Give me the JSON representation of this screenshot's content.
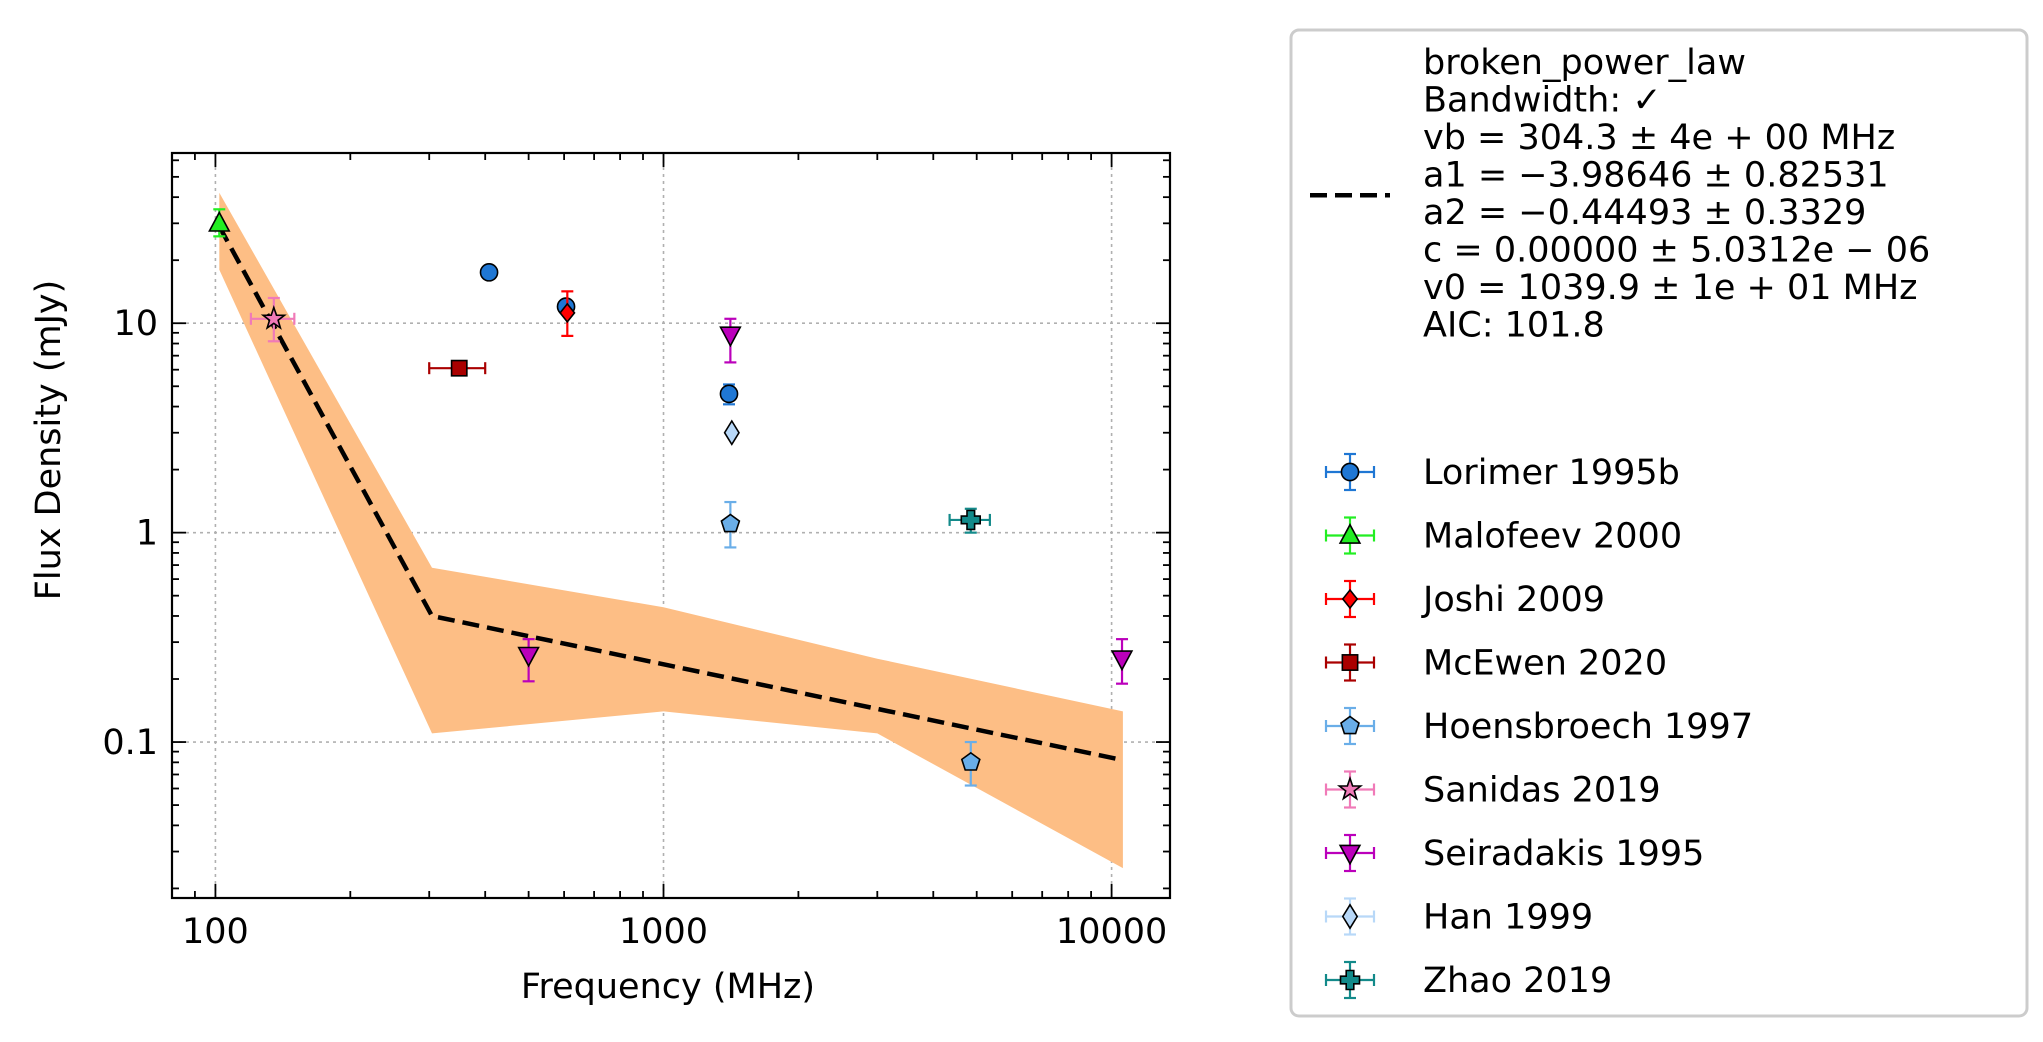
{
  "chart_data": {
    "type": "scatter",
    "xlabel": "Frequency (MHz)",
    "ylabel": "Flux Density (mJy)",
    "xscale": "log",
    "yscale": "log",
    "xlim": [
      80,
      13500
    ],
    "ylim": [
      0.018,
      65
    ],
    "xticks": [
      {
        "value": 100,
        "label": "100"
      },
      {
        "value": 1000,
        "label": "1000"
      },
      {
        "value": 10000,
        "label": "10000"
      }
    ],
    "yticks": [
      {
        "value": 0.1,
        "label": "0.1"
      },
      {
        "value": 1,
        "label": "1"
      },
      {
        "value": 10,
        "label": "10"
      }
    ],
    "grid": true,
    "legend_position": "outside right",
    "fit": {
      "model": "broken_power_law",
      "label_lines": [
        "broken_power_law",
        "Bandwidth: ✓",
        "vb = 304.3 ± 4e + 00 MHz",
        "a1 = −3.98646 ± 0.82531",
        "a2 = −0.44493 ± 0.3329",
        "c = 0.00000 ± 5.0312e − 06",
        "v0 = 1039.9 ± 1e + 01 MHz",
        "AIC: 101.8"
      ],
      "line_color": "#000000",
      "band_color": "#fdbe85",
      "line": [
        [
          102,
          29
        ],
        [
          304.3,
          0.4
        ],
        [
          10600,
          0.082
        ]
      ],
      "band_upper": [
        [
          102,
          42
        ],
        [
          304.3,
          0.68
        ],
        [
          1000,
          0.44
        ],
        [
          3000,
          0.25
        ],
        [
          10600,
          0.14
        ]
      ],
      "band_lower": [
        [
          102,
          18
        ],
        [
          304.3,
          0.11
        ],
        [
          1000,
          0.14
        ],
        [
          3000,
          0.11
        ],
        [
          10600,
          0.025
        ]
      ]
    },
    "series": [
      {
        "name": "Lorimer 1995b",
        "marker": "circle",
        "color": "#1f77d4",
        "points": [
          {
            "x": 408,
            "y": 17.5
          },
          {
            "x": 606,
            "y": 12
          },
          {
            "x": 1400,
            "y": 4.6,
            "yerr": [
              0.5,
              0.5
            ]
          }
        ]
      },
      {
        "name": "Malofeev 2000",
        "marker": "triangle-up",
        "color": "#22ee22",
        "points": [
          {
            "x": 102,
            "y": 30,
            "yerr": [
              4,
              5
            ]
          }
        ]
      },
      {
        "name": "Joshi 2009",
        "marker": "diamond-small",
        "color": "#ff0000",
        "points": [
          {
            "x": 610,
            "y": 11.2,
            "yerr": [
              2.5,
              3
            ]
          }
        ]
      },
      {
        "name": "McEwen 2020",
        "marker": "square",
        "color": "#aa0000",
        "points": [
          {
            "x": 350,
            "y": 6.1,
            "xerr": [
              50,
              50
            ]
          }
        ]
      },
      {
        "name": "Hoensbroech 1997",
        "marker": "pentagon",
        "color": "#6aaee8",
        "points": [
          {
            "x": 1410,
            "y": 1.1,
            "yerr": [
              0.25,
              0.3
            ]
          },
          {
            "x": 4850,
            "y": 0.08,
            "yerr": [
              0.018,
              0.02
            ]
          }
        ]
      },
      {
        "name": "Sanidas 2019",
        "marker": "star",
        "color": "#f07ab8",
        "points": [
          {
            "x": 135,
            "y": 10.5,
            "xerr": [
              15,
              15
            ],
            "yerr": [
              2.3,
              2.7
            ]
          }
        ]
      },
      {
        "name": "Seiradakis 1995",
        "marker": "triangle-down",
        "color": "#bb00bb",
        "points": [
          {
            "x": 1410,
            "y": 8.8,
            "yerr": [
              2.3,
              1.7
            ]
          },
          {
            "x": 500,
            "y": 0.26,
            "yerr": [
              0.065,
              0.05
            ]
          },
          {
            "x": 10550,
            "y": 0.25,
            "yerr": [
              0.06,
              0.06
            ]
          }
        ]
      },
      {
        "name": "Han 1999",
        "marker": "diamond",
        "color": "#b8d8f8",
        "points": [
          {
            "x": 1420,
            "y": 3.0
          }
        ]
      },
      {
        "name": "Zhao 2019",
        "marker": "plus",
        "color": "#138a8a",
        "points": [
          {
            "x": 4850,
            "y": 1.15,
            "xerr": [
              500,
              500
            ],
            "yerr": [
              0.15,
              0.15
            ]
          }
        ]
      }
    ]
  }
}
